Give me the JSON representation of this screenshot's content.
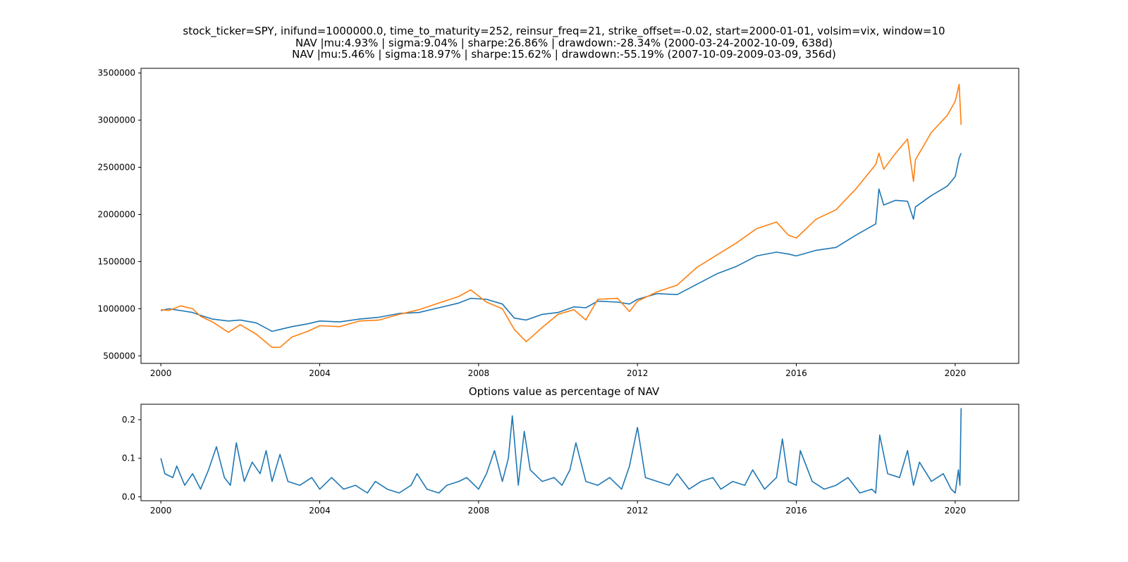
{
  "title_lines": [
    "stock_ticker=SPY, inifund=1000000.0, time_to_maturity=252, reinsur_freq=21, strike_offset=-0.02, start=2000-01-01, volsim=vix, window=10",
    "NAV |mu:4.93% | sigma:9.04% | sharpe:26.86% | drawdown:-28.34% (2000-03-24-2002-10-09, 638d)",
    "NAV |mu:5.46% | sigma:18.97% | sharpe:15.62% | drawdown:-55.19% (2007-10-09-2009-03-09, 356d)"
  ],
  "colors": {
    "blue": "#1f77b4",
    "orange": "#ff7f0e"
  },
  "chart_data": [
    {
      "type": "line",
      "title": "",
      "xlabel": "",
      "ylabel": "",
      "xlim": [
        1999.5,
        2021.6
      ],
      "ylim": [
        420000,
        3550000
      ],
      "xticks": [
        2000,
        2004,
        2008,
        2012,
        2016,
        2020
      ],
      "xtick_labels": [
        "2000",
        "2004",
        "2008",
        "2012",
        "2016",
        "2020"
      ],
      "yticks": [
        500000,
        1000000,
        1500000,
        2000000,
        2500000,
        3000000,
        3500000
      ],
      "ytick_labels": [
        "500000",
        "1000000",
        "1500000",
        "2000000",
        "2500000",
        "3000000",
        "3500000"
      ],
      "series": [
        {
          "color": "#1f77b4",
          "x": [
            2000.0,
            2000.2,
            2000.5,
            2000.8,
            2001.0,
            2001.3,
            2001.7,
            2002.0,
            2002.4,
            2002.8,
            2003.0,
            2003.3,
            2003.7,
            2004.0,
            2004.5,
            2005.0,
            2005.5,
            2006.0,
            2006.5,
            2007.0,
            2007.5,
            2007.8,
            2008.2,
            2008.6,
            2008.9,
            2009.2,
            2009.6,
            2010.0,
            2010.4,
            2010.7,
            2011.0,
            2011.5,
            2011.8,
            2012.0,
            2012.5,
            2013.0,
            2013.5,
            2014.0,
            2014.5,
            2015.0,
            2015.5,
            2015.8,
            2016.0,
            2016.5,
            2017.0,
            2017.5,
            2018.0,
            2018.08,
            2018.2,
            2018.5,
            2018.8,
            2018.95,
            2019.0,
            2019.4,
            2019.8,
            2020.0,
            2020.1,
            2020.15
          ],
          "y": [
            980000,
            1000000,
            980000,
            960000,
            930000,
            890000,
            870000,
            880000,
            850000,
            760000,
            780000,
            810000,
            840000,
            870000,
            860000,
            890000,
            910000,
            950000,
            960000,
            1010000,
            1060000,
            1110000,
            1100000,
            1050000,
            900000,
            880000,
            940000,
            960000,
            1020000,
            1010000,
            1080000,
            1070000,
            1050000,
            1100000,
            1160000,
            1150000,
            1260000,
            1370000,
            1450000,
            1560000,
            1600000,
            1580000,
            1560000,
            1620000,
            1650000,
            1780000,
            1900000,
            2270000,
            2100000,
            2150000,
            2140000,
            1950000,
            2080000,
            2200000,
            2300000,
            2400000,
            2600000,
            2650000
          ]
        },
        {
          "color": "#ff7f0e",
          "x": [
            2000.0,
            2000.2,
            2000.5,
            2000.8,
            2001.0,
            2001.3,
            2001.7,
            2002.0,
            2002.4,
            2002.8,
            2003.0,
            2003.3,
            2003.7,
            2004.0,
            2004.5,
            2005.0,
            2005.5,
            2006.0,
            2006.5,
            2007.0,
            2007.5,
            2007.8,
            2008.2,
            2008.6,
            2008.9,
            2009.2,
            2009.6,
            2010.0,
            2010.4,
            2010.7,
            2011.0,
            2011.5,
            2011.8,
            2012.0,
            2012.5,
            2013.0,
            2013.5,
            2014.0,
            2014.5,
            2015.0,
            2015.5,
            2015.8,
            2016.0,
            2016.5,
            2017.0,
            2017.5,
            2018.0,
            2018.08,
            2018.2,
            2018.5,
            2018.8,
            2018.95,
            2019.0,
            2019.4,
            2019.8,
            2020.0,
            2020.1,
            2020.15
          ],
          "y": [
            990000,
            980000,
            1030000,
            1000000,
            920000,
            860000,
            750000,
            830000,
            730000,
            590000,
            590000,
            700000,
            760000,
            820000,
            810000,
            870000,
            880000,
            940000,
            990000,
            1060000,
            1130000,
            1200000,
            1070000,
            1000000,
            780000,
            650000,
            800000,
            940000,
            990000,
            880000,
            1100000,
            1110000,
            970000,
            1080000,
            1180000,
            1250000,
            1440000,
            1570000,
            1700000,
            1850000,
            1920000,
            1780000,
            1750000,
            1950000,
            2050000,
            2270000,
            2530000,
            2650000,
            2480000,
            2650000,
            2800000,
            2350000,
            2580000,
            2870000,
            3050000,
            3200000,
            3380000,
            2950000
          ]
        }
      ]
    },
    {
      "type": "line",
      "title": "Options value as percentage of NAV",
      "xlabel": "",
      "ylabel": "",
      "xlim": [
        1999.5,
        2021.6
      ],
      "ylim": [
        -0.01,
        0.24
      ],
      "xticks": [
        2000,
        2004,
        2008,
        2012,
        2016,
        2020
      ],
      "xtick_labels": [
        "2000",
        "2004",
        "2008",
        "2012",
        "2016",
        "2020"
      ],
      "yticks": [
        0.0,
        0.1,
        0.2
      ],
      "ytick_labels": [
        "0.0",
        "0.1",
        "0.2"
      ],
      "series": [
        {
          "color": "#1f77b4",
          "x": [
            2000.0,
            2000.1,
            2000.3,
            2000.4,
            2000.6,
            2000.8,
            2001.0,
            2001.2,
            2001.4,
            2001.6,
            2001.75,
            2001.9,
            2002.1,
            2002.3,
            2002.5,
            2002.65,
            2002.8,
            2003.0,
            2003.2,
            2003.5,
            2003.8,
            2004.0,
            2004.3,
            2004.6,
            2004.9,
            2005.2,
            2005.4,
            2005.7,
            2006.0,
            2006.3,
            2006.45,
            2006.7,
            2007.0,
            2007.2,
            2007.5,
            2007.7,
            2008.0,
            2008.2,
            2008.4,
            2008.6,
            2008.75,
            2008.85,
            2009.0,
            2009.15,
            2009.3,
            2009.6,
            2009.9,
            2010.1,
            2010.3,
            2010.45,
            2010.7,
            2011.0,
            2011.3,
            2011.6,
            2011.8,
            2012.0,
            2012.2,
            2012.5,
            2012.8,
            2013.0,
            2013.3,
            2013.6,
            2013.9,
            2014.1,
            2014.4,
            2014.7,
            2014.9,
            2015.2,
            2015.5,
            2015.65,
            2015.8,
            2016.0,
            2016.1,
            2016.4,
            2016.7,
            2017.0,
            2017.3,
            2017.6,
            2017.9,
            2018.0,
            2018.1,
            2018.3,
            2018.6,
            2018.8,
            2018.95,
            2019.1,
            2019.4,
            2019.7,
            2019.9,
            2020.0,
            2020.08,
            2020.12,
            2020.15
          ],
          "y": [
            0.1,
            0.06,
            0.05,
            0.08,
            0.03,
            0.06,
            0.02,
            0.07,
            0.13,
            0.05,
            0.03,
            0.14,
            0.04,
            0.09,
            0.06,
            0.12,
            0.04,
            0.11,
            0.04,
            0.03,
            0.05,
            0.02,
            0.05,
            0.02,
            0.03,
            0.01,
            0.04,
            0.02,
            0.01,
            0.03,
            0.06,
            0.02,
            0.01,
            0.03,
            0.04,
            0.05,
            0.02,
            0.06,
            0.12,
            0.04,
            0.1,
            0.21,
            0.03,
            0.17,
            0.07,
            0.04,
            0.05,
            0.03,
            0.07,
            0.14,
            0.04,
            0.03,
            0.05,
            0.02,
            0.08,
            0.18,
            0.05,
            0.04,
            0.03,
            0.06,
            0.02,
            0.04,
            0.05,
            0.02,
            0.04,
            0.03,
            0.07,
            0.02,
            0.05,
            0.15,
            0.04,
            0.03,
            0.12,
            0.04,
            0.02,
            0.03,
            0.05,
            0.01,
            0.02,
            0.01,
            0.16,
            0.06,
            0.05,
            0.12,
            0.03,
            0.09,
            0.04,
            0.06,
            0.02,
            0.01,
            0.07,
            0.03,
            0.23
          ]
        }
      ]
    }
  ]
}
